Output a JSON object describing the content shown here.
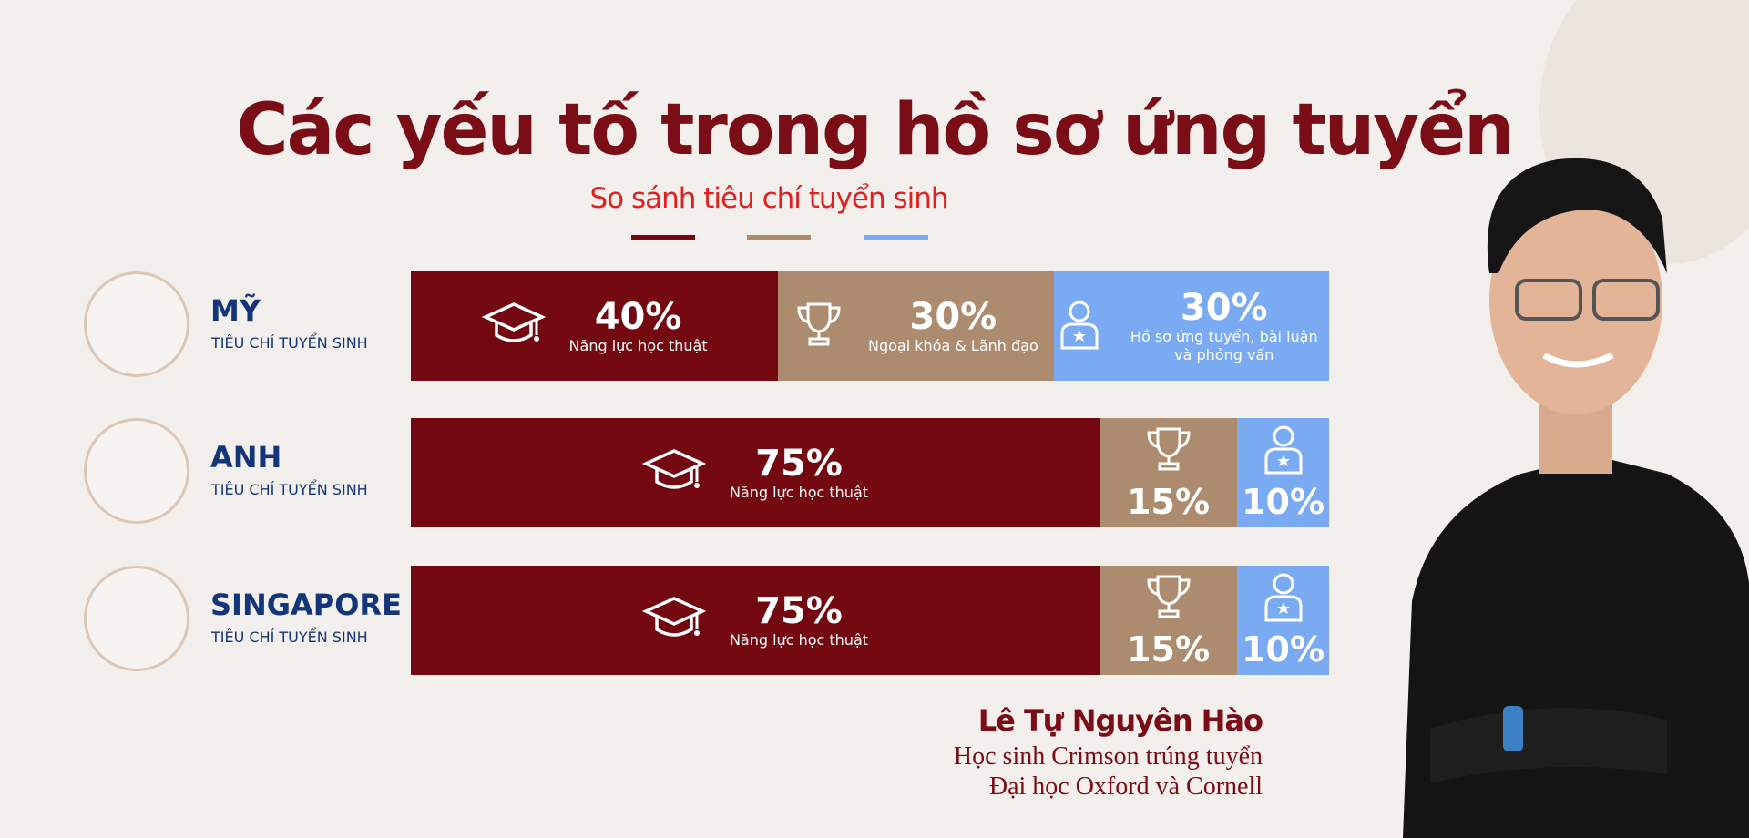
{
  "chart_data": {
    "type": "bar",
    "orientation": "horizontal",
    "stacked": true,
    "title": "Các yếu tố trong hồ sơ ứng tuyển",
    "subtitle": "So sánh tiêu chí tuyển sinh",
    "categories": [
      "MỸ",
      "ANH",
      "SINGAPORE"
    ],
    "category_subtitles": [
      "TIÊU CHÍ TUYỂN SINH",
      "TIÊU CHÍ TUYỂN SINH",
      "TIÊU CHÍ TUYỂN SINH"
    ],
    "xlim": [
      0,
      100
    ],
    "series": [
      {
        "color": "#730810",
        "values": [
          40,
          75,
          75
        ],
        "value_labels": [
          "40%",
          "75%",
          "75%"
        ],
        "segment_labels": [
          "Năng lực học thuật",
          "Năng lực học thuật",
          "Năng lực học thuật"
        ]
      },
      {
        "color": "#ad8b6e",
        "values": [
          30,
          15,
          15
        ],
        "value_labels": [
          "30%",
          "15%",
          "15%"
        ],
        "segment_labels": [
          "Ngoại khóa & Lãnh đạo",
          null,
          null
        ]
      },
      {
        "color": "#7aabf2",
        "values": [
          30,
          10,
          10
        ],
        "value_labels": [
          "30%",
          "10%",
          "10%"
        ],
        "segment_labels": [
          "Hồ sơ ứng tuyển, bài luận và phỏng vấn",
          null,
          null
        ]
      }
    ]
  },
  "caption": {
    "name": "Lê Tự Nguyên Hào",
    "lines": [
      "Học sinh Crimson trúng tuyển",
      "Đại học Oxford và Cornell"
    ]
  }
}
